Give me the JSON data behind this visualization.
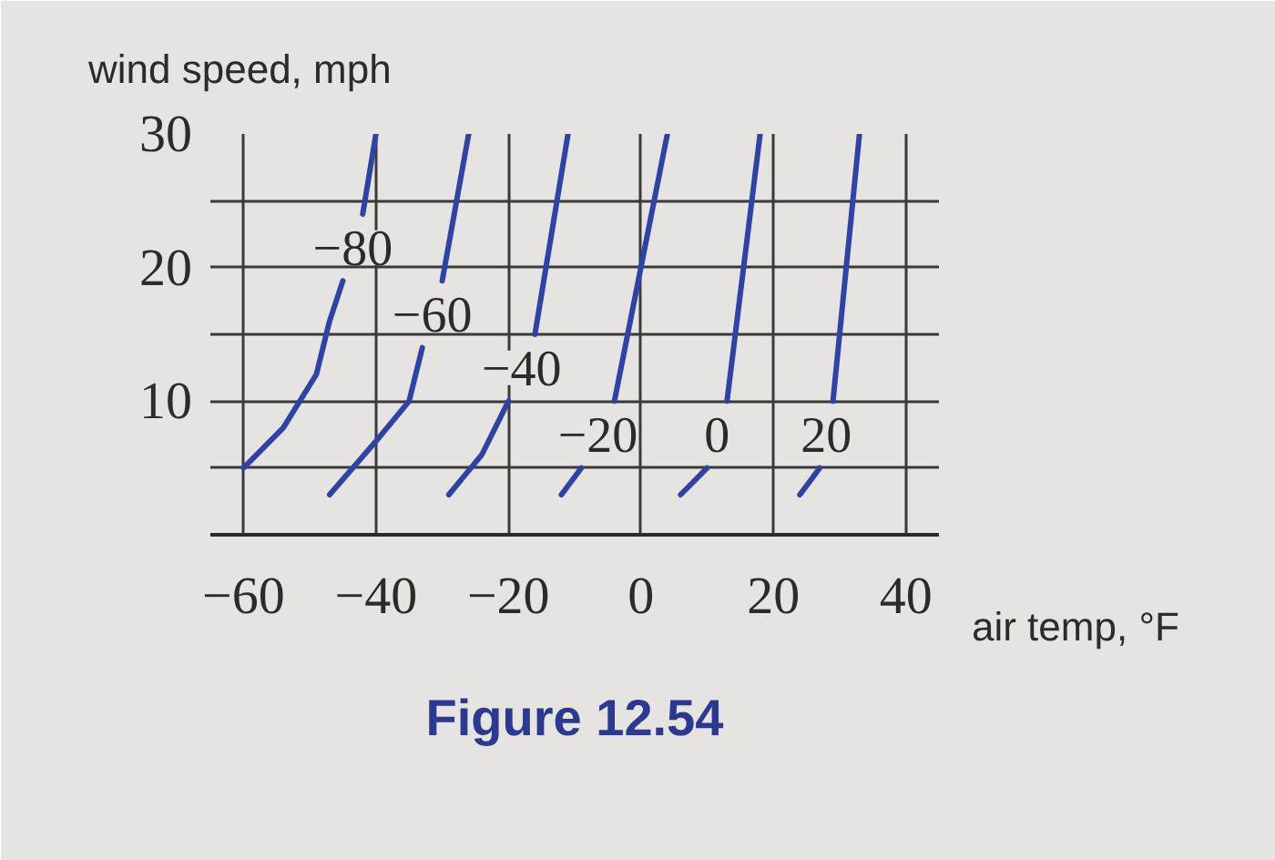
{
  "chart_data": {
    "type": "line",
    "xlabel": "air temp, °F",
    "ylabel": "wind speed, mph",
    "annotations": [
      "Figure 12.54"
    ],
    "xlim": [
      -65,
      45
    ],
    "ylim": [
      0,
      30
    ],
    "xticks": [
      -60,
      -40,
      -20,
      0,
      20,
      40
    ],
    "yticks": [
      {
        "value": 5,
        "label": null
      },
      10,
      {
        "value": 15,
        "label": null
      },
      20,
      {
        "value": 25,
        "label": null
      },
      30
    ],
    "grid": true,
    "series": [
      {
        "name": "−80",
        "color": "#2e43a6",
        "x": [
          -60,
          -54,
          -49,
          -47,
          -45,
          -44,
          -42,
          -40
        ],
        "values": [
          5,
          8,
          12,
          16,
          19,
          null,
          24,
          30
        ]
      },
      {
        "name": "−60",
        "color": "#2e43a6",
        "x": [
          -47,
          -40,
          -35,
          -33,
          -32,
          -30,
          -26
        ],
        "values": [
          3,
          7,
          10,
          14,
          null,
          19,
          30
        ]
      },
      {
        "name": "−40",
        "color": "#2e43a6",
        "x": [
          -29,
          -24,
          -20,
          -18,
          -16,
          -11
        ],
        "values": [
          3,
          6,
          10,
          null,
          15,
          30
        ]
      },
      {
        "name": "−20",
        "color": "#2e43a6",
        "x": [
          -12,
          -9,
          -6,
          -4,
          4
        ],
        "values": [
          3,
          5,
          null,
          10,
          30
        ]
      },
      {
        "name": "0",
        "color": "#2e43a6",
        "x": [
          6,
          10,
          11,
          13,
          18
        ],
        "values": [
          3,
          5,
          null,
          10,
          30
        ]
      },
      {
        "name": "20",
        "color": "#2e43a6",
        "x": [
          24,
          27,
          28,
          29,
          33
        ],
        "values": [
          3,
          5,
          null,
          10,
          30
        ]
      }
    ]
  }
}
